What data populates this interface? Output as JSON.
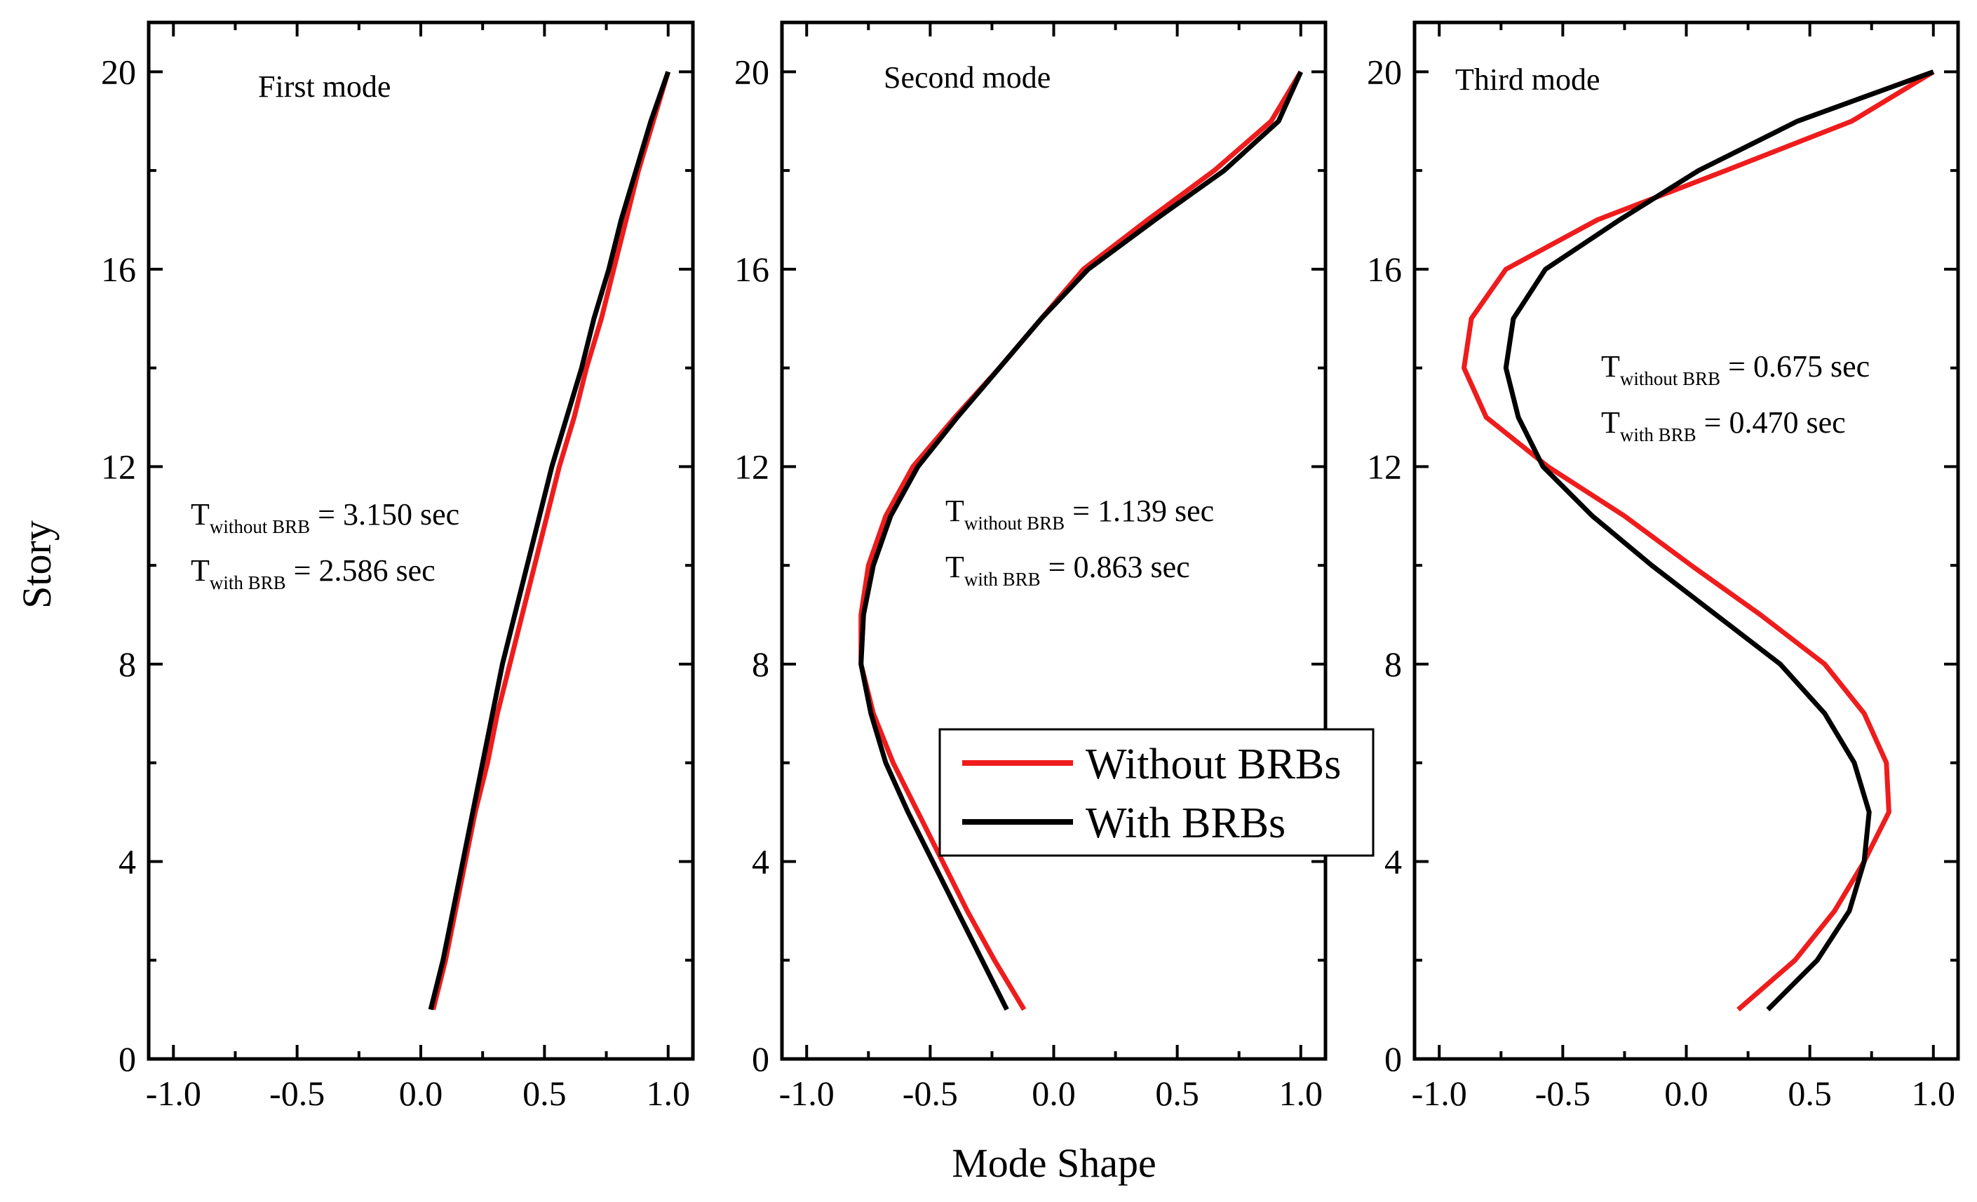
{
  "chart_data": {
    "type": "line",
    "xlabel": "Mode Shape",
    "ylabel": "Story",
    "xlim": [
      -1.1,
      1.1
    ],
    "ylim": [
      0,
      21
    ],
    "x_ticks": [
      -1.0,
      -0.5,
      0.0,
      0.5,
      1.0
    ],
    "x_tick_labels": [
      "-1.0",
      "-0.5",
      "0.0",
      "0.5",
      "1.0"
    ],
    "y_ticks": [
      0,
      4,
      8,
      12,
      16,
      20
    ],
    "y_tick_labels": [
      "0",
      "4",
      "8",
      "12",
      "16",
      "20"
    ],
    "legend": {
      "placement": "center (middle panel, lower right)",
      "entries": [
        {
          "label": "Without BRBs",
          "color": "#ee1c1c"
        },
        {
          "label": "With BRBs",
          "color": "#000000"
        }
      ]
    },
    "stories": [
      1,
      2,
      3,
      4,
      5,
      6,
      7,
      8,
      9,
      10,
      11,
      12,
      13,
      14,
      15,
      16,
      17,
      18,
      19,
      20
    ],
    "panels": [
      {
        "title": "First mode",
        "periods": [
          {
            "label": "T",
            "sub": "without BRB",
            "value": " = 3.150 sec"
          },
          {
            "label": "T",
            "sub": "with BRB",
            "value": " = 2.586 sec"
          }
        ],
        "series": [
          {
            "name": "Without BRBs",
            "color": "#ee1c1c",
            "values": [
              0.05,
              0.1,
              0.14,
              0.18,
              0.22,
              0.27,
              0.31,
              0.36,
              0.41,
              0.46,
              0.51,
              0.56,
              0.62,
              0.67,
              0.73,
              0.78,
              0.83,
              0.88,
              0.94,
              1.0
            ]
          },
          {
            "name": "With BRBs",
            "color": "#000000",
            "values": [
              0.04,
              0.09,
              0.13,
              0.17,
              0.21,
              0.25,
              0.29,
              0.33,
              0.38,
              0.43,
              0.48,
              0.53,
              0.59,
              0.65,
              0.7,
              0.76,
              0.81,
              0.87,
              0.93,
              1.0
            ]
          }
        ]
      },
      {
        "title": "Second mode",
        "periods": [
          {
            "label": "T",
            "sub": "without BRB",
            "value": " = 1.139 sec"
          },
          {
            "label": "T",
            "sub": "with BRB",
            "value": " = 0.863 sec"
          }
        ],
        "series": [
          {
            "name": "Without BRBs",
            "color": "#ee1c1c",
            "values": [
              -0.12,
              -0.24,
              -0.35,
              -0.45,
              -0.55,
              -0.65,
              -0.73,
              -0.78,
              -0.78,
              -0.75,
              -0.68,
              -0.57,
              -0.4,
              -0.22,
              -0.05,
              0.12,
              0.38,
              0.65,
              0.88,
              1.0
            ]
          },
          {
            "name": "With BRBs",
            "color": "#000000",
            "values": [
              -0.19,
              -0.29,
              -0.39,
              -0.49,
              -0.59,
              -0.68,
              -0.74,
              -0.78,
              -0.77,
              -0.73,
              -0.66,
              -0.55,
              -0.39,
              -0.22,
              -0.05,
              0.14,
              0.41,
              0.69,
              0.91,
              1.0
            ]
          }
        ]
      },
      {
        "title": "Third mode",
        "periods": [
          {
            "label": "T",
            "sub": "without BRB",
            "value": " = 0.675 sec"
          },
          {
            "label": "T",
            "sub": "with BRB",
            "value": " = 0.470 sec"
          }
        ],
        "series": [
          {
            "name": "Without BRBs",
            "color": "#ee1c1c",
            "values": [
              0.21,
              0.44,
              0.6,
              0.72,
              0.82,
              0.81,
              0.72,
              0.56,
              0.3,
              0.02,
              -0.25,
              -0.56,
              -0.81,
              -0.9,
              -0.87,
              -0.73,
              -0.36,
              0.16,
              0.67,
              1.0
            ]
          },
          {
            "name": "With BRBs",
            "color": "#000000",
            "values": [
              0.33,
              0.53,
              0.66,
              0.72,
              0.74,
              0.68,
              0.56,
              0.38,
              0.12,
              -0.14,
              -0.38,
              -0.58,
              -0.68,
              -0.73,
              -0.7,
              -0.57,
              -0.27,
              0.05,
              0.45,
              1.0
            ]
          }
        ]
      }
    ]
  }
}
